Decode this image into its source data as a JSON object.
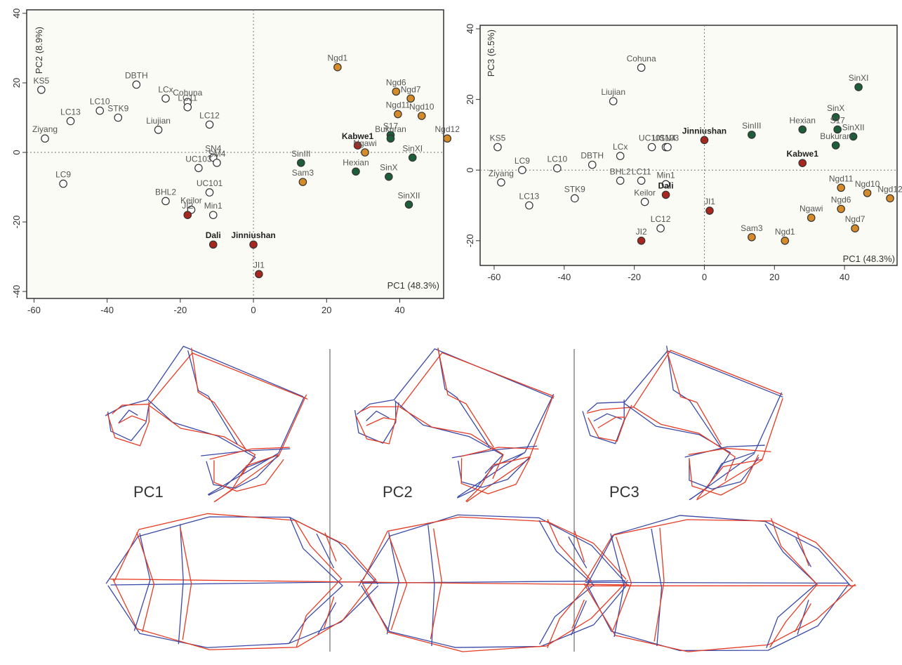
{
  "colors": {
    "white_point": "#ffffff",
    "orange": "#d58b2a",
    "green": "#1e5d39",
    "red": "#a7271f",
    "frame": "#333333",
    "panel_bg": "#fbfbf6",
    "wire_red": "#e63b22",
    "wire_blue": "#3a49a8"
  },
  "chart_data": [
    {
      "type": "scatter",
      "xlabel": "PC1 (48.3%)",
      "ylabel": "PC2 (8.9%)",
      "xlim": [
        -62,
        52
      ],
      "ylim": [
        -42,
        41
      ],
      "xticks": [
        "-60",
        "-40",
        "-20",
        "0",
        "20",
        "40"
      ],
      "yticks": [
        "-40",
        "-20",
        "0",
        "20",
        "40"
      ],
      "grid": false,
      "reference_lines": "dotted lines at x = 0 and y = 0",
      "points": [
        {
          "label": "KS5",
          "x": -58,
          "y": 18,
          "group": "white"
        },
        {
          "label": "Ziyang",
          "x": -57,
          "y": 4,
          "group": "white"
        },
        {
          "label": "LC13",
          "x": -50,
          "y": 9,
          "group": "white"
        },
        {
          "label": "LC10",
          "x": -42,
          "y": 12,
          "group": "white"
        },
        {
          "label": "STK9",
          "x": -37,
          "y": 10,
          "group": "white"
        },
        {
          "label": "DBTH",
          "x": -32,
          "y": 19.5,
          "group": "white"
        },
        {
          "label": "LC9",
          "x": -52,
          "y": -9,
          "group": "white"
        },
        {
          "label": "LCx",
          "x": -24,
          "y": 15.5,
          "group": "white"
        },
        {
          "label": "Cohuna",
          "x": -18,
          "y": 14.5,
          "group": "white"
        },
        {
          "label": "LC11",
          "x": -18,
          "y": 13,
          "group": "white"
        },
        {
          "label": "Liujian",
          "x": -26,
          "y": 6.5,
          "group": "white"
        },
        {
          "label": "LC12",
          "x": -12,
          "y": 8,
          "group": "white"
        },
        {
          "label": "SN4",
          "x": -11,
          "y": -1.5,
          "group": "white"
        },
        {
          "label": "SM4",
          "x": -10,
          "y": -3,
          "group": "white"
        },
        {
          "label": "UC103",
          "x": -15,
          "y": -4.5,
          "group": "white"
        },
        {
          "label": "UC101",
          "x": -12,
          "y": -11.5,
          "group": "white"
        },
        {
          "label": "BHL2",
          "x": -24,
          "y": -14,
          "group": "white"
        },
        {
          "label": "Keilor",
          "x": -17,
          "y": -16.5,
          "group": "white"
        },
        {
          "label": "Min1",
          "x": -11,
          "y": -18,
          "group": "white"
        },
        {
          "label": "JI2",
          "x": -18,
          "y": -18,
          "group": "red"
        },
        {
          "label": "Dali",
          "x": -11,
          "y": -26.5,
          "group": "red"
        },
        {
          "label": "Jinniushan",
          "x": 0,
          "y": -26.5,
          "group": "red"
        },
        {
          "label": "JI1",
          "x": 1.5,
          "y": -35,
          "group": "red"
        },
        {
          "label": "Kabwe1",
          "x": 28.5,
          "y": 2,
          "group": "red"
        },
        {
          "label": "Ngd1",
          "x": 23,
          "y": 24.5,
          "group": "orange"
        },
        {
          "label": "Ngd6",
          "x": 39,
          "y": 17.5,
          "group": "orange"
        },
        {
          "label": "Ngd7",
          "x": 43,
          "y": 15.5,
          "group": "orange"
        },
        {
          "label": "Ngd11",
          "x": 39.5,
          "y": 11,
          "group": "orange"
        },
        {
          "label": "Ngd10",
          "x": 46,
          "y": 10.5,
          "group": "orange"
        },
        {
          "label": "Ngd12",
          "x": 53,
          "y": 4,
          "group": "orange"
        },
        {
          "label": "Ngawi",
          "x": 30.5,
          "y": 0,
          "group": "orange"
        },
        {
          "label": "Sam3",
          "x": 13.5,
          "y": -8.5,
          "group": "orange"
        },
        {
          "label": "S17",
          "x": 37.5,
          "y": 5,
          "group": "green"
        },
        {
          "label": "Bukuran",
          "x": 37.5,
          "y": 4,
          "group": "green"
        },
        {
          "label": "SinXI",
          "x": 43.5,
          "y": -1.5,
          "group": "green"
        },
        {
          "label": "SinIII",
          "x": 13,
          "y": -3,
          "group": "green"
        },
        {
          "label": "Hexian",
          "x": 28,
          "y": -5.5,
          "group": "green"
        },
        {
          "label": "SinX",
          "x": 37,
          "y": -7,
          "group": "green"
        },
        {
          "label": "SinXII",
          "x": 42.5,
          "y": -15,
          "group": "green"
        }
      ]
    },
    {
      "type": "scatter",
      "xlabel": "PC1 (48.3%)",
      "ylabel": "PC3 (6.5%)",
      "xlim": [
        -64,
        55
      ],
      "ylim": [
        -27,
        41
      ],
      "xticks": [
        "-60",
        "-40",
        "-20",
        "0",
        "20",
        "40"
      ],
      "yticks": [
        "-20",
        "0",
        "20",
        "40"
      ],
      "grid": false,
      "reference_lines": "dotted lines at x = 0 and y = 0",
      "points": [
        {
          "label": "Cohuna",
          "x": -18,
          "y": 29,
          "group": "white"
        },
        {
          "label": "Liujian",
          "x": -26,
          "y": 19.5,
          "group": "white"
        },
        {
          "label": "KS5",
          "x": -59,
          "y": 6.5,
          "group": "white"
        },
        {
          "label": "LC9",
          "x": -52,
          "y": 0,
          "group": "white"
        },
        {
          "label": "Ziyang",
          "x": -58,
          "y": -3.5,
          "group": "white"
        },
        {
          "label": "LC10",
          "x": -42,
          "y": 0.5,
          "group": "white"
        },
        {
          "label": "DBTH",
          "x": -32,
          "y": 1.5,
          "group": "white"
        },
        {
          "label": "LC13",
          "x": -50,
          "y": -10,
          "group": "white"
        },
        {
          "label": "STK9",
          "x": -37,
          "y": -8,
          "group": "white"
        },
        {
          "label": "LCx",
          "x": -24,
          "y": 4,
          "group": "white"
        },
        {
          "label": "UC101",
          "x": -15,
          "y": 6.5,
          "group": "white"
        },
        {
          "label": "UC103",
          "x": -11,
          "y": 6.5,
          "group": "white"
        },
        {
          "label": "SN4",
          "x": -10.5,
          "y": 6.5,
          "group": "white"
        },
        {
          "label": "BHL2",
          "x": -24,
          "y": -3,
          "group": "white"
        },
        {
          "label": "LC11",
          "x": -18,
          "y": -3,
          "group": "white"
        },
        {
          "label": "Min1",
          "x": -11,
          "y": -4,
          "group": "white"
        },
        {
          "label": "Keilor",
          "x": -17,
          "y": -9,
          "group": "white"
        },
        {
          "label": "LC12",
          "x": -12.5,
          "y": -16.5,
          "group": "white"
        },
        {
          "label": "Dali",
          "x": -11,
          "y": -7,
          "group": "red"
        },
        {
          "label": "JI1",
          "x": 1.5,
          "y": -11.5,
          "group": "red"
        },
        {
          "label": "JI2",
          "x": -18,
          "y": -20,
          "group": "red"
        },
        {
          "label": "Jinniushan",
          "x": 0,
          "y": 8.5,
          "group": "red"
        },
        {
          "label": "Kabwe1",
          "x": 28,
          "y": 2,
          "group": "red"
        },
        {
          "label": "SinIII",
          "x": 13.5,
          "y": 10,
          "group": "green"
        },
        {
          "label": "Hexian",
          "x": 28,
          "y": 11.5,
          "group": "green"
        },
        {
          "label": "SinX",
          "x": 37.5,
          "y": 15,
          "group": "green"
        },
        {
          "label": "SinXI",
          "x": 44,
          "y": 23.5,
          "group": "green"
        },
        {
          "label": "S17",
          "x": 38,
          "y": 11.5,
          "group": "green"
        },
        {
          "label": "SinXII",
          "x": 42.5,
          "y": 9.5,
          "group": "green"
        },
        {
          "label": "Bukuran",
          "x": 37.5,
          "y": 7,
          "group": "green"
        },
        {
          "label": "Ngd11",
          "x": 39,
          "y": -5,
          "group": "orange"
        },
        {
          "label": "Ngd10",
          "x": 46.5,
          "y": -6.5,
          "group": "orange"
        },
        {
          "label": "Ngd12",
          "x": 53,
          "y": -8,
          "group": "orange"
        },
        {
          "label": "Ngd6",
          "x": 39,
          "y": -11,
          "group": "orange"
        },
        {
          "label": "Ngawi",
          "x": 30.5,
          "y": -13.5,
          "group": "orange"
        },
        {
          "label": "Ngd7",
          "x": 43,
          "y": -16.5,
          "group": "orange"
        },
        {
          "label": "Sam3",
          "x": 13.5,
          "y": -19,
          "group": "orange"
        },
        {
          "label": "Ngd1",
          "x": 23,
          "y": -20,
          "group": "orange"
        }
      ]
    }
  ],
  "diagrams": {
    "labels": [
      "PC1",
      "PC2",
      "PC3"
    ]
  }
}
